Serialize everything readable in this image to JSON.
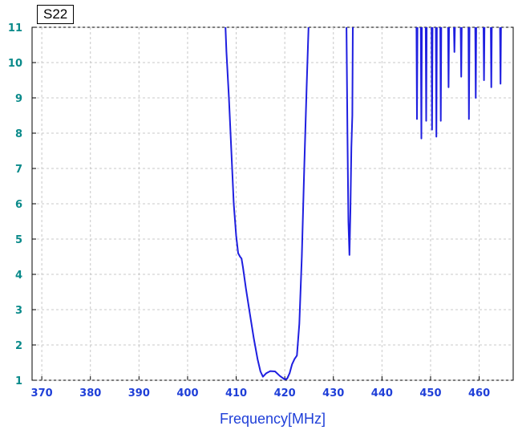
{
  "chart_data": {
    "type": "line",
    "title": "",
    "legend": [
      "S22"
    ],
    "xlabel": "Frequency[MHz]",
    "ylabel": "",
    "xlim": [
      368,
      467
    ],
    "ylim": [
      1,
      11
    ],
    "xticks": [
      370,
      380,
      390,
      400,
      410,
      420,
      430,
      440,
      450,
      460
    ],
    "yticks": [
      1,
      2,
      3,
      4,
      5,
      6,
      7,
      8,
      9,
      10,
      11
    ],
    "grid": true,
    "series": [
      {
        "color": "#1f1fe0",
        "segments": [
          [
            [
              407.8,
              11
            ],
            [
              408.0,
              10.3
            ],
            [
              408.5,
              9.0
            ],
            [
              409.0,
              7.5
            ],
            [
              409.5,
              6.0
            ],
            [
              410.0,
              5.1
            ],
            [
              410.4,
              4.6
            ],
            [
              410.8,
              4.5
            ],
            [
              411.1,
              4.45
            ],
            [
              411.4,
              4.2
            ],
            [
              412.0,
              3.6
            ],
            [
              412.8,
              2.9
            ],
            [
              413.6,
              2.2
            ],
            [
              414.4,
              1.6
            ],
            [
              415.0,
              1.25
            ],
            [
              415.5,
              1.1
            ],
            [
              416.2,
              1.2
            ],
            [
              417.0,
              1.26
            ],
            [
              418.0,
              1.25
            ],
            [
              419.0,
              1.12
            ],
            [
              420.0,
              1.02
            ],
            [
              420.5,
              1.05
            ],
            [
              421.0,
              1.2
            ],
            [
              421.5,
              1.45
            ],
            [
              422.0,
              1.6
            ],
            [
              422.5,
              1.7
            ],
            [
              423.0,
              2.6
            ],
            [
              423.5,
              4.5
            ],
            [
              424.0,
              7.0
            ],
            [
              424.5,
              9.3
            ],
            [
              424.9,
              11
            ]
          ],
          [
            [
              432.7,
              11
            ],
            [
              432.9,
              8.0
            ],
            [
              433.1,
              5.5
            ],
            [
              433.3,
              4.55
            ],
            [
              433.5,
              5.8
            ],
            [
              433.7,
              7.6
            ],
            [
              433.9,
              8.5
            ],
            [
              434.0,
              11
            ]
          ],
          [
            [
              447.1,
              11
            ],
            [
              447.2,
              8.4
            ],
            [
              447.3,
              11
            ]
          ],
          [
            [
              448.0,
              11
            ],
            [
              448.1,
              7.85
            ],
            [
              448.2,
              11
            ]
          ],
          [
            [
              449.0,
              11
            ],
            [
              449.1,
              8.35
            ],
            [
              449.2,
              11
            ]
          ],
          [
            [
              450.2,
              11
            ],
            [
              450.3,
              8.1
            ],
            [
              450.4,
              11
            ]
          ],
          [
            [
              451.1,
              11
            ],
            [
              451.2,
              7.9
            ],
            [
              451.3,
              11
            ]
          ],
          [
            [
              452.0,
              11
            ],
            [
              452.1,
              8.35
            ],
            [
              452.2,
              11
            ]
          ],
          [
            [
              453.6,
              11
            ],
            [
              453.7,
              9.3
            ],
            [
              453.8,
              11
            ]
          ],
          [
            [
              454.8,
              11
            ],
            [
              454.9,
              10.3
            ],
            [
              455.0,
              11
            ]
          ],
          [
            [
              456.2,
              11
            ],
            [
              456.3,
              9.6
            ],
            [
              456.4,
              11
            ]
          ],
          [
            [
              457.8,
              11
            ],
            [
              457.9,
              8.4
            ],
            [
              458.0,
              11
            ]
          ],
          [
            [
              459.2,
              11
            ],
            [
              459.3,
              9.0
            ],
            [
              459.4,
              11
            ]
          ],
          [
            [
              460.9,
              11
            ],
            [
              461.0,
              9.5
            ],
            [
              461.1,
              11
            ]
          ],
          [
            [
              462.4,
              11
            ],
            [
              462.5,
              9.3
            ],
            [
              462.6,
              11
            ]
          ],
          [
            [
              464.3,
              11
            ],
            [
              464.4,
              9.4
            ],
            [
              464.5,
              11
            ]
          ]
        ]
      }
    ]
  }
}
